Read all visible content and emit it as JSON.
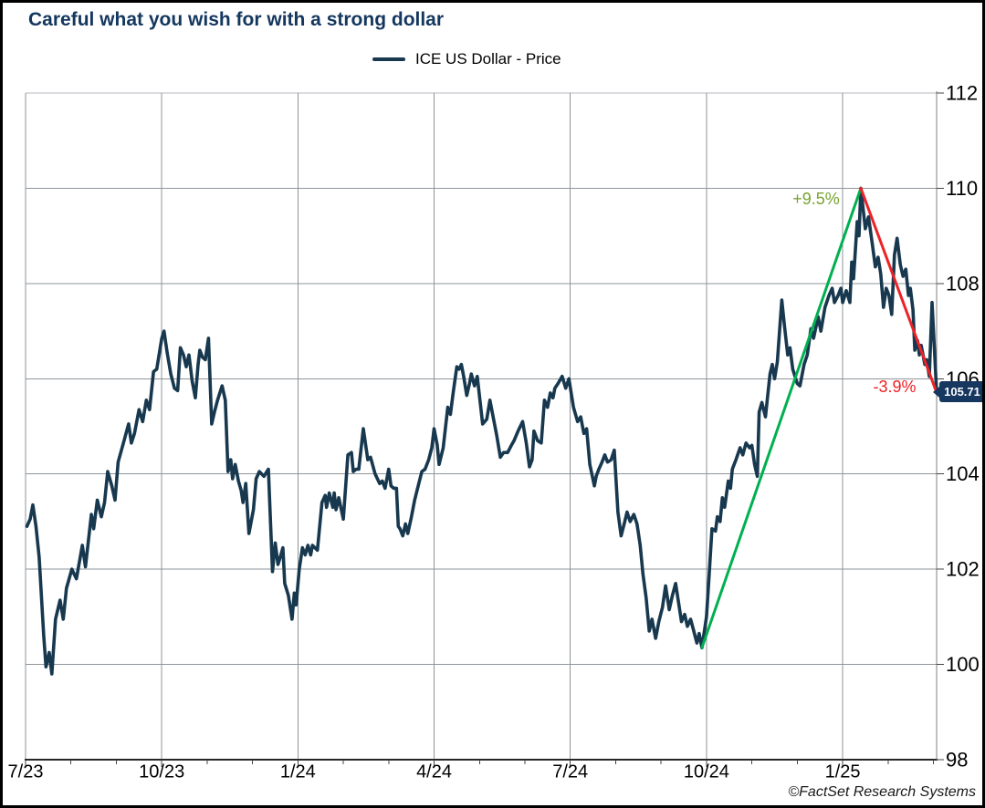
{
  "page": {
    "title": "Careful what you wish for with a strong dollar",
    "copyright": "©FactSet Research Systems"
  },
  "legend": {
    "label": "ICE US Dollar - Price"
  },
  "colors": {
    "title": "#14375e",
    "price_line": "#17384e",
    "grid": "#8e959b",
    "grid_top": "#b4bac0",
    "axis_bottom": "#262626",
    "axis_right": "#808080",
    "tick": "#444444",
    "label_text": "#000000",
    "up_line": "#00b050",
    "up_label": "#76a32f",
    "down_line": "#ec2227",
    "down_label": "#ee2024",
    "badge_bg": "#16375f",
    "badge_text": "#ffffff"
  },
  "chart_data": {
    "type": "line",
    "title": "Careful what you wish for with a strong dollar",
    "series_name": "ICE US Dollar - Price",
    "x_unit": "months since 2023-07",
    "x_range": [
      0,
      20.07
    ],
    "x_tick_positions": [
      0,
      3,
      6,
      9,
      12,
      15,
      18
    ],
    "x_tick_labels": [
      "7/23",
      "10/23",
      "1/24",
      "4/24",
      "7/24",
      "10/24",
      "1/25"
    ],
    "x_minor_step": 1,
    "ylim": [
      98,
      112
    ],
    "y_ticks": [
      98,
      100,
      102,
      104,
      106,
      108,
      110,
      112
    ],
    "grid": true,
    "legend_position": "top-center",
    "points": [
      [
        0.03,
        102.9
      ],
      [
        0.1,
        103.05
      ],
      [
        0.16,
        103.35
      ],
      [
        0.23,
        102.9
      ],
      [
        0.3,
        102.25
      ],
      [
        0.4,
        100.6
      ],
      [
        0.45,
        99.95
      ],
      [
        0.52,
        100.25
      ],
      [
        0.58,
        99.8
      ],
      [
        0.66,
        100.95
      ],
      [
        0.76,
        101.35
      ],
      [
        0.83,
        100.95
      ],
      [
        0.9,
        101.6
      ],
      [
        1.02,
        102.0
      ],
      [
        1.12,
        101.8
      ],
      [
        1.25,
        102.5
      ],
      [
        1.32,
        102.05
      ],
      [
        1.45,
        103.15
      ],
      [
        1.5,
        102.85
      ],
      [
        1.58,
        103.45
      ],
      [
        1.67,
        103.1
      ],
      [
        1.74,
        103.4
      ],
      [
        1.81,
        104.05
      ],
      [
        1.9,
        103.75
      ],
      [
        1.97,
        103.45
      ],
      [
        2.04,
        104.25
      ],
      [
        2.17,
        104.7
      ],
      [
        2.27,
        105.05
      ],
      [
        2.33,
        104.65
      ],
      [
        2.4,
        104.85
      ],
      [
        2.5,
        105.35
      ],
      [
        2.58,
        105.1
      ],
      [
        2.66,
        105.55
      ],
      [
        2.73,
        105.35
      ],
      [
        2.82,
        106.15
      ],
      [
        2.89,
        106.2
      ],
      [
        3.0,
        106.85
      ],
      [
        3.05,
        107.0
      ],
      [
        3.12,
        106.55
      ],
      [
        3.2,
        106.1
      ],
      [
        3.28,
        105.8
      ],
      [
        3.35,
        105.75
      ],
      [
        3.41,
        106.65
      ],
      [
        3.48,
        106.5
      ],
      [
        3.54,
        106.25
      ],
      [
        3.6,
        106.5
      ],
      [
        3.67,
        105.95
      ],
      [
        3.74,
        105.6
      ],
      [
        3.8,
        106.3
      ],
      [
        3.84,
        106.6
      ],
      [
        3.9,
        106.45
      ],
      [
        3.96,
        106.4
      ],
      [
        4.03,
        106.85
      ],
      [
        4.1,
        105.05
      ],
      [
        4.16,
        105.3
      ],
      [
        4.23,
        105.55
      ],
      [
        4.33,
        105.85
      ],
      [
        4.4,
        105.55
      ],
      [
        4.46,
        104.05
      ],
      [
        4.52,
        104.3
      ],
      [
        4.56,
        103.9
      ],
      [
        4.62,
        104.2
      ],
      [
        4.69,
        103.85
      ],
      [
        4.75,
        103.65
      ],
      [
        4.79,
        103.4
      ],
      [
        4.85,
        103.8
      ],
      [
        4.92,
        102.75
      ],
      [
        5.02,
        103.25
      ],
      [
        5.08,
        103.9
      ],
      [
        5.15,
        104.05
      ],
      [
        5.25,
        103.95
      ],
      [
        5.35,
        104.1
      ],
      [
        5.44,
        101.95
      ],
      [
        5.5,
        102.55
      ],
      [
        5.56,
        102.1
      ],
      [
        5.61,
        102.25
      ],
      [
        5.67,
        102.45
      ],
      [
        5.71,
        101.7
      ],
      [
        5.79,
        101.45
      ],
      [
        5.87,
        100.95
      ],
      [
        5.92,
        101.5
      ],
      [
        5.96,
        101.25
      ],
      [
        6.03,
        102.0
      ],
      [
        6.1,
        102.45
      ],
      [
        6.16,
        102.3
      ],
      [
        6.22,
        102.5
      ],
      [
        6.28,
        102.3
      ],
      [
        6.32,
        102.5
      ],
      [
        6.43,
        102.4
      ],
      [
        6.53,
        103.4
      ],
      [
        6.6,
        103.55
      ],
      [
        6.63,
        103.3
      ],
      [
        6.69,
        103.6
      ],
      [
        6.77,
        103.3
      ],
      [
        6.8,
        103.6
      ],
      [
        6.84,
        103.25
      ],
      [
        6.9,
        103.5
      ],
      [
        7.0,
        103.05
      ],
      [
        7.1,
        104.4
      ],
      [
        7.18,
        104.45
      ],
      [
        7.22,
        104.05
      ],
      [
        7.28,
        104.1
      ],
      [
        7.34,
        104.1
      ],
      [
        7.44,
        104.95
      ],
      [
        7.54,
        104.3
      ],
      [
        7.6,
        104.35
      ],
      [
        7.7,
        104.0
      ],
      [
        7.8,
        103.8
      ],
      [
        7.86,
        103.85
      ],
      [
        7.92,
        103.7
      ],
      [
        8.0,
        104.1
      ],
      [
        8.05,
        103.75
      ],
      [
        8.11,
        103.7
      ],
      [
        8.17,
        103.7
      ],
      [
        8.21,
        102.9
      ],
      [
        8.25,
        102.85
      ],
      [
        8.31,
        102.7
      ],
      [
        8.37,
        102.95
      ],
      [
        8.42,
        102.75
      ],
      [
        8.5,
        103.1
      ],
      [
        8.57,
        103.45
      ],
      [
        8.65,
        103.75
      ],
      [
        8.73,
        104.05
      ],
      [
        8.8,
        104.1
      ],
      [
        8.88,
        104.3
      ],
      [
        8.95,
        104.55
      ],
      [
        9.0,
        104.95
      ],
      [
        9.07,
        104.6
      ],
      [
        9.11,
        104.2
      ],
      [
        9.2,
        104.55
      ],
      [
        9.3,
        105.4
      ],
      [
        9.36,
        105.25
      ],
      [
        9.42,
        105.7
      ],
      [
        9.5,
        106.25
      ],
      [
        9.55,
        106.2
      ],
      [
        9.6,
        106.3
      ],
      [
        9.65,
        106.05
      ],
      [
        9.72,
        105.65
      ],
      [
        9.78,
        105.9
      ],
      [
        9.82,
        106.1
      ],
      [
        9.89,
        105.85
      ],
      [
        9.95,
        106.05
      ],
      [
        10.07,
        105.05
      ],
      [
        10.16,
        105.15
      ],
      [
        10.23,
        105.55
      ],
      [
        10.3,
        105.2
      ],
      [
        10.38,
        104.8
      ],
      [
        10.46,
        104.35
      ],
      [
        10.53,
        104.45
      ],
      [
        10.62,
        104.45
      ],
      [
        10.7,
        104.6
      ],
      [
        10.76,
        104.7
      ],
      [
        10.85,
        104.9
      ],
      [
        10.95,
        105.1
      ],
      [
        11.03,
        104.65
      ],
      [
        11.1,
        104.15
      ],
      [
        11.16,
        104.3
      ],
      [
        11.2,
        104.9
      ],
      [
        11.28,
        104.7
      ],
      [
        11.36,
        104.65
      ],
      [
        11.43,
        105.55
      ],
      [
        11.5,
        105.4
      ],
      [
        11.56,
        105.7
      ],
      [
        11.62,
        105.6
      ],
      [
        11.66,
        105.8
      ],
      [
        11.73,
        105.9
      ],
      [
        11.82,
        106.05
      ],
      [
        11.9,
        105.8
      ],
      [
        11.97,
        106.0
      ],
      [
        12.07,
        105.4
      ],
      [
        12.16,
        105.1
      ],
      [
        12.23,
        105.2
      ],
      [
        12.3,
        104.85
      ],
      [
        12.36,
        104.95
      ],
      [
        12.43,
        104.2
      ],
      [
        12.53,
        103.75
      ],
      [
        12.57,
        103.95
      ],
      [
        12.63,
        104.1
      ],
      [
        12.7,
        104.25
      ],
      [
        12.76,
        104.4
      ],
      [
        12.82,
        104.25
      ],
      [
        12.9,
        104.3
      ],
      [
        12.97,
        104.5
      ],
      [
        13.05,
        103.2
      ],
      [
        13.12,
        102.7
      ],
      [
        13.2,
        103.0
      ],
      [
        13.25,
        103.2
      ],
      [
        13.32,
        103.0
      ],
      [
        13.4,
        103.15
      ],
      [
        13.47,
        102.95
      ],
      [
        13.54,
        102.5
      ],
      [
        13.6,
        101.9
      ],
      [
        13.67,
        101.4
      ],
      [
        13.74,
        100.7
      ],
      [
        13.8,
        100.95
      ],
      [
        13.88,
        100.55
      ],
      [
        13.95,
        100.9
      ],
      [
        14.03,
        101.2
      ],
      [
        14.1,
        101.65
      ],
      [
        14.18,
        101.15
      ],
      [
        14.25,
        101.45
      ],
      [
        14.32,
        101.7
      ],
      [
        14.4,
        101.2
      ],
      [
        14.45,
        100.9
      ],
      [
        14.52,
        101.05
      ],
      [
        14.58,
        100.8
      ],
      [
        14.65,
        100.95
      ],
      [
        14.72,
        100.7
      ],
      [
        14.79,
        100.45
      ],
      [
        14.84,
        100.65
      ],
      [
        14.9,
        100.35
      ],
      [
        15.0,
        101.0
      ],
      [
        15.06,
        101.9
      ],
      [
        15.12,
        102.85
      ],
      [
        15.2,
        102.8
      ],
      [
        15.24,
        103.1
      ],
      [
        15.3,
        103.0
      ],
      [
        15.35,
        103.5
      ],
      [
        15.4,
        103.3
      ],
      [
        15.48,
        103.85
      ],
      [
        15.53,
        103.7
      ],
      [
        15.57,
        104.1
      ],
      [
        15.65,
        104.3
      ],
      [
        15.74,
        104.55
      ],
      [
        15.8,
        104.4
      ],
      [
        15.87,
        104.65
      ],
      [
        15.95,
        104.55
      ],
      [
        16.0,
        104.6
      ],
      [
        16.06,
        104.2
      ],
      [
        16.12,
        103.95
      ],
      [
        16.16,
        105.3
      ],
      [
        16.22,
        105.5
      ],
      [
        16.3,
        105.2
      ],
      [
        16.4,
        106.1
      ],
      [
        16.45,
        106.3
      ],
      [
        16.5,
        106.0
      ],
      [
        16.56,
        106.35
      ],
      [
        16.66,
        107.65
      ],
      [
        16.72,
        107.1
      ],
      [
        16.79,
        106.5
      ],
      [
        16.84,
        106.65
      ],
      [
        16.9,
        106.2
      ],
      [
        17.0,
        105.9
      ],
      [
        17.06,
        105.85
      ],
      [
        17.15,
        106.3
      ],
      [
        17.22,
        106.5
      ],
      [
        17.3,
        107.05
      ],
      [
        17.36,
        106.85
      ],
      [
        17.46,
        107.3
      ],
      [
        17.52,
        107.0
      ],
      [
        17.61,
        107.5
      ],
      [
        17.7,
        107.75
      ],
      [
        17.77,
        107.9
      ],
      [
        17.82,
        107.6
      ],
      [
        17.9,
        107.75
      ],
      [
        17.96,
        107.9
      ],
      [
        18.0,
        107.6
      ],
      [
        18.08,
        107.85
      ],
      [
        18.16,
        107.6
      ],
      [
        18.2,
        108.45
      ],
      [
        18.24,
        108.1
      ],
      [
        18.32,
        109.3
      ],
      [
        18.36,
        109.0
      ],
      [
        18.4,
        110.0
      ],
      [
        18.5,
        109.15
      ],
      [
        18.57,
        109.4
      ],
      [
        18.65,
        108.85
      ],
      [
        18.72,
        108.35
      ],
      [
        18.78,
        108.55
      ],
      [
        18.84,
        108.2
      ],
      [
        18.9,
        107.5
      ],
      [
        18.96,
        107.9
      ],
      [
        19.02,
        107.75
      ],
      [
        19.08,
        107.35
      ],
      [
        19.14,
        108.6
      ],
      [
        19.2,
        108.95
      ],
      [
        19.27,
        108.4
      ],
      [
        19.33,
        108.15
      ],
      [
        19.39,
        108.3
      ],
      [
        19.45,
        107.75
      ],
      [
        19.49,
        107.9
      ],
      [
        19.55,
        107.45
      ],
      [
        19.59,
        106.6
      ],
      [
        19.65,
        106.8
      ],
      [
        19.69,
        106.5
      ],
      [
        19.73,
        106.7
      ],
      [
        19.81,
        106.3
      ],
      [
        19.85,
        106.4
      ],
      [
        19.91,
        106.05
      ],
      [
        19.97,
        107.6
      ],
      [
        20.07,
        105.71
      ]
    ],
    "annotations": {
      "up_move": {
        "label": "+9.5%",
        "from": [
          14.9,
          100.35
        ],
        "to": [
          18.4,
          110.0
        ]
      },
      "down_move": {
        "label": "-3.9%",
        "from": [
          18.4,
          110.0
        ],
        "to": [
          20.07,
          105.71
        ]
      },
      "last_price": {
        "label": "105.71",
        "value": 105.71
      }
    }
  }
}
